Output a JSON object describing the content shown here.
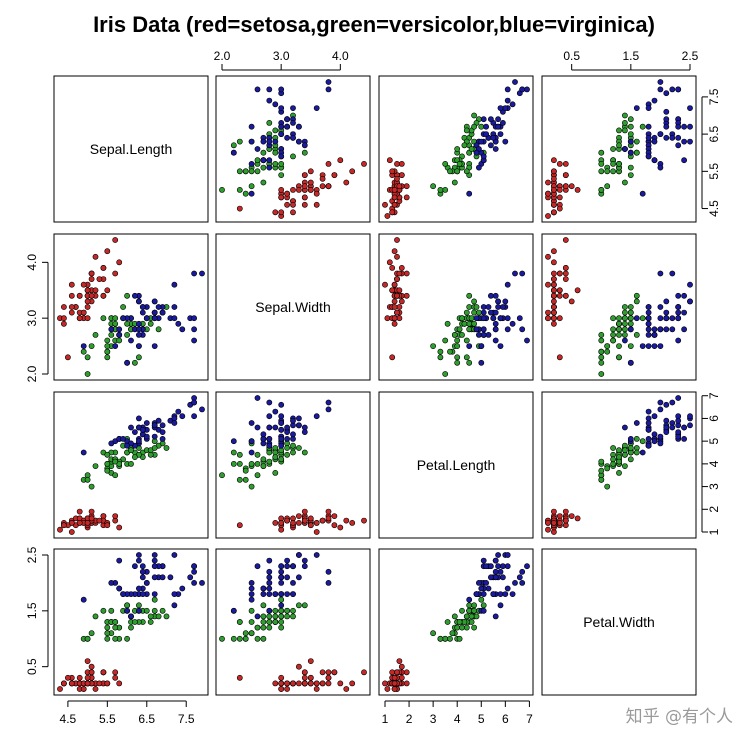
{
  "watermark": "知乎 @有个人",
  "chart_data": {
    "type": "scatter",
    "title": "Iris Data (red=setosa,green=versicolor,blue=virginica)",
    "variables": [
      "Sepal.Length",
      "Sepal.Width",
      "Petal.Length",
      "Petal.Width"
    ],
    "ranges": [
      [
        4.3,
        7.9
      ],
      [
        2.0,
        4.4
      ],
      [
        1.0,
        6.9
      ],
      [
        0.1,
        2.5
      ]
    ],
    "ticks": [
      {
        "values": [
          4.5,
          5.5,
          6.5,
          7.5
        ],
        "labels": [
          "4.5",
          "5.5",
          "6.5",
          "7.5"
        ]
      },
      {
        "values": [
          2.0,
          3.0,
          4.0
        ],
        "labels": [
          "2.0",
          "3.0",
          "4.0"
        ]
      },
      {
        "values": [
          1,
          2,
          3,
          4,
          5,
          6,
          7
        ],
        "labels": [
          "1",
          "2",
          "3",
          "4",
          "5",
          "6",
          "7"
        ]
      },
      {
        "values": [
          0.5,
          1.5,
          2.5
        ],
        "labels": [
          "0.5",
          "1.5",
          "2.5"
        ]
      }
    ],
    "axis_placement": {
      "top": [
        "Sepal.Width",
        "Petal.Width"
      ],
      "bottom": [
        "Sepal.Length",
        "Petal.Length"
      ],
      "left": [
        "Sepal.Width",
        "Petal.Width"
      ],
      "right": [
        "Sepal.Length",
        "Petal.Length"
      ]
    },
    "grid": false,
    "series": [
      {
        "color": "#c62828",
        "points": [
          [
            5.1,
            3.5,
            1.4,
            0.2
          ],
          [
            4.9,
            3.0,
            1.4,
            0.2
          ],
          [
            4.7,
            3.2,
            1.3,
            0.2
          ],
          [
            4.6,
            3.1,
            1.5,
            0.2
          ],
          [
            5.0,
            3.6,
            1.4,
            0.2
          ],
          [
            5.4,
            3.9,
            1.7,
            0.4
          ],
          [
            4.6,
            3.4,
            1.4,
            0.3
          ],
          [
            5.0,
            3.4,
            1.5,
            0.2
          ],
          [
            4.4,
            2.9,
            1.4,
            0.2
          ],
          [
            4.9,
            3.1,
            1.5,
            0.1
          ],
          [
            5.4,
            3.7,
            1.5,
            0.2
          ],
          [
            4.8,
            3.4,
            1.6,
            0.2
          ],
          [
            4.8,
            3.0,
            1.4,
            0.1
          ],
          [
            4.3,
            3.0,
            1.1,
            0.1
          ],
          [
            5.8,
            4.0,
            1.2,
            0.2
          ],
          [
            5.7,
            4.4,
            1.5,
            0.4
          ],
          [
            5.4,
            3.9,
            1.3,
            0.4
          ],
          [
            5.1,
            3.5,
            1.4,
            0.3
          ],
          [
            5.7,
            3.8,
            1.7,
            0.3
          ],
          [
            5.1,
            3.8,
            1.5,
            0.3
          ],
          [
            5.4,
            3.4,
            1.7,
            0.2
          ],
          [
            5.1,
            3.7,
            1.5,
            0.4
          ],
          [
            4.6,
            3.6,
            1.0,
            0.2
          ],
          [
            5.1,
            3.3,
            1.7,
            0.5
          ],
          [
            4.8,
            3.4,
            1.9,
            0.2
          ],
          [
            5.0,
            3.0,
            1.6,
            0.2
          ],
          [
            5.0,
            3.4,
            1.6,
            0.4
          ],
          [
            5.2,
            3.5,
            1.5,
            0.2
          ],
          [
            5.2,
            3.4,
            1.4,
            0.2
          ],
          [
            4.7,
            3.2,
            1.6,
            0.2
          ],
          [
            4.8,
            3.1,
            1.6,
            0.2
          ],
          [
            5.4,
            3.4,
            1.5,
            0.4
          ],
          [
            5.2,
            4.1,
            1.5,
            0.1
          ],
          [
            5.5,
            4.2,
            1.4,
            0.2
          ],
          [
            4.9,
            3.1,
            1.5,
            0.2
          ],
          [
            5.0,
            3.2,
            1.2,
            0.2
          ],
          [
            5.5,
            3.5,
            1.3,
            0.2
          ],
          [
            4.9,
            3.6,
            1.4,
            0.1
          ],
          [
            4.4,
            3.0,
            1.3,
            0.2
          ],
          [
            5.1,
            3.4,
            1.5,
            0.2
          ],
          [
            5.0,
            3.5,
            1.3,
            0.3
          ],
          [
            4.5,
            2.3,
            1.3,
            0.3
          ],
          [
            4.4,
            3.2,
            1.3,
            0.2
          ],
          [
            5.0,
            3.5,
            1.6,
            0.6
          ],
          [
            5.1,
            3.8,
            1.9,
            0.4
          ],
          [
            4.8,
            3.0,
            1.4,
            0.3
          ],
          [
            5.1,
            3.8,
            1.6,
            0.2
          ],
          [
            4.6,
            3.2,
            1.4,
            0.2
          ],
          [
            5.3,
            3.7,
            1.5,
            0.2
          ],
          [
            5.0,
            3.3,
            1.4,
            0.2
          ]
        ]
      },
      {
        "color": "#2e9e2e",
        "points": [
          [
            7.0,
            3.2,
            4.7,
            1.4
          ],
          [
            6.4,
            3.2,
            4.5,
            1.5
          ],
          [
            6.9,
            3.1,
            4.9,
            1.5
          ],
          [
            5.5,
            2.3,
            4.0,
            1.3
          ],
          [
            6.5,
            2.8,
            4.6,
            1.5
          ],
          [
            5.7,
            2.8,
            4.5,
            1.3
          ],
          [
            6.3,
            3.3,
            4.7,
            1.6
          ],
          [
            4.9,
            2.4,
            3.3,
            1.0
          ],
          [
            6.6,
            2.9,
            4.6,
            1.3
          ],
          [
            5.2,
            2.7,
            3.9,
            1.4
          ],
          [
            5.0,
            2.0,
            3.5,
            1.0
          ],
          [
            5.9,
            3.0,
            4.2,
            1.5
          ],
          [
            6.0,
            2.2,
            4.0,
            1.0
          ],
          [
            6.1,
            2.9,
            4.7,
            1.4
          ],
          [
            5.6,
            2.9,
            3.6,
            1.3
          ],
          [
            6.7,
            3.1,
            4.4,
            1.4
          ],
          [
            5.6,
            3.0,
            4.5,
            1.5
          ],
          [
            5.8,
            2.7,
            4.1,
            1.0
          ],
          [
            6.2,
            2.2,
            4.5,
            1.5
          ],
          [
            5.6,
            2.5,
            3.9,
            1.1
          ],
          [
            5.9,
            3.2,
            4.8,
            1.8
          ],
          [
            6.1,
            2.8,
            4.0,
            1.3
          ],
          [
            6.3,
            2.5,
            4.9,
            1.5
          ],
          [
            6.1,
            2.8,
            4.7,
            1.2
          ],
          [
            6.4,
            2.9,
            4.3,
            1.3
          ],
          [
            6.6,
            3.0,
            4.4,
            1.4
          ],
          [
            6.8,
            2.8,
            4.8,
            1.4
          ],
          [
            6.7,
            3.0,
            5.0,
            1.7
          ],
          [
            6.0,
            2.9,
            4.5,
            1.5
          ],
          [
            5.7,
            2.6,
            3.5,
            1.0
          ],
          [
            5.5,
            2.4,
            3.8,
            1.1
          ],
          [
            5.5,
            2.4,
            3.7,
            1.0
          ],
          [
            5.8,
            2.7,
            3.9,
            1.2
          ],
          [
            6.0,
            2.7,
            5.1,
            1.6
          ],
          [
            5.4,
            3.0,
            4.5,
            1.5
          ],
          [
            6.0,
            3.4,
            4.5,
            1.6
          ],
          [
            6.7,
            3.1,
            4.7,
            1.5
          ],
          [
            6.3,
            2.3,
            4.4,
            1.3
          ],
          [
            5.6,
            3.0,
            4.1,
            1.3
          ],
          [
            5.5,
            2.5,
            4.0,
            1.3
          ],
          [
            5.5,
            2.6,
            4.4,
            1.2
          ],
          [
            6.1,
            3.0,
            4.6,
            1.4
          ],
          [
            5.8,
            2.6,
            4.0,
            1.2
          ],
          [
            5.0,
            2.3,
            3.3,
            1.0
          ],
          [
            5.6,
            2.7,
            4.2,
            1.3
          ],
          [
            5.7,
            3.0,
            4.2,
            1.2
          ],
          [
            5.7,
            2.9,
            4.2,
            1.3
          ],
          [
            6.2,
            2.9,
            4.3,
            1.3
          ],
          [
            5.1,
            2.5,
            3.0,
            1.1
          ],
          [
            5.7,
            2.8,
            4.1,
            1.3
          ]
        ]
      },
      {
        "color": "#1a1a9e",
        "points": [
          [
            6.3,
            3.3,
            6.0,
            2.5
          ],
          [
            5.8,
            2.7,
            5.1,
            1.9
          ],
          [
            7.1,
            3.0,
            5.9,
            2.1
          ],
          [
            6.3,
            2.9,
            5.6,
            1.8
          ],
          [
            6.5,
            3.0,
            5.8,
            2.2
          ],
          [
            7.6,
            3.0,
            6.6,
            2.1
          ],
          [
            4.9,
            2.5,
            4.5,
            1.7
          ],
          [
            7.3,
            2.9,
            6.3,
            1.8
          ],
          [
            6.7,
            2.5,
            5.8,
            1.8
          ],
          [
            7.2,
            3.6,
            6.1,
            2.5
          ],
          [
            6.5,
            3.2,
            5.1,
            2.0
          ],
          [
            6.4,
            2.7,
            5.3,
            1.9
          ],
          [
            6.8,
            3.0,
            5.5,
            2.1
          ],
          [
            5.7,
            2.5,
            5.0,
            2.0
          ],
          [
            5.8,
            2.8,
            5.1,
            2.4
          ],
          [
            6.4,
            3.2,
            5.3,
            2.3
          ],
          [
            6.5,
            3.0,
            5.5,
            1.8
          ],
          [
            7.7,
            3.8,
            6.7,
            2.2
          ],
          [
            7.7,
            2.6,
            6.9,
            2.3
          ],
          [
            6.0,
            2.2,
            5.0,
            1.5
          ],
          [
            6.9,
            3.2,
            5.7,
            2.3
          ],
          [
            5.6,
            2.8,
            4.9,
            2.0
          ],
          [
            7.7,
            2.8,
            6.7,
            2.0
          ],
          [
            6.3,
            2.7,
            4.9,
            1.8
          ],
          [
            6.7,
            3.3,
            5.7,
            2.1
          ],
          [
            7.2,
            3.2,
            6.0,
            1.8
          ],
          [
            6.2,
            2.8,
            4.8,
            1.8
          ],
          [
            6.1,
            3.0,
            4.9,
            1.8
          ],
          [
            6.4,
            2.8,
            5.6,
            2.1
          ],
          [
            7.2,
            3.0,
            5.8,
            1.6
          ],
          [
            7.4,
            2.8,
            6.1,
            1.9
          ],
          [
            7.9,
            3.8,
            6.4,
            2.0
          ],
          [
            6.4,
            2.8,
            5.6,
            2.2
          ],
          [
            6.3,
            2.8,
            5.1,
            1.5
          ],
          [
            6.1,
            2.6,
            5.6,
            1.4
          ],
          [
            7.7,
            3.0,
            6.1,
            2.3
          ],
          [
            6.3,
            3.4,
            5.6,
            2.4
          ],
          [
            6.4,
            3.1,
            5.5,
            1.8
          ],
          [
            6.0,
            3.0,
            4.8,
            1.8
          ],
          [
            6.9,
            3.1,
            5.4,
            2.1
          ],
          [
            6.7,
            3.1,
            5.6,
            2.4
          ],
          [
            6.9,
            3.1,
            5.1,
            2.3
          ],
          [
            5.8,
            2.7,
            5.1,
            1.9
          ],
          [
            6.8,
            3.2,
            5.9,
            2.3
          ],
          [
            6.7,
            3.3,
            5.7,
            2.5
          ],
          [
            6.7,
            3.0,
            5.2,
            2.3
          ],
          [
            6.3,
            2.5,
            5.0,
            1.9
          ],
          [
            6.5,
            3.0,
            5.2,
            2.0
          ],
          [
            6.2,
            3.4,
            5.4,
            2.3
          ],
          [
            5.9,
            3.0,
            5.1,
            1.8
          ]
        ]
      }
    ]
  }
}
